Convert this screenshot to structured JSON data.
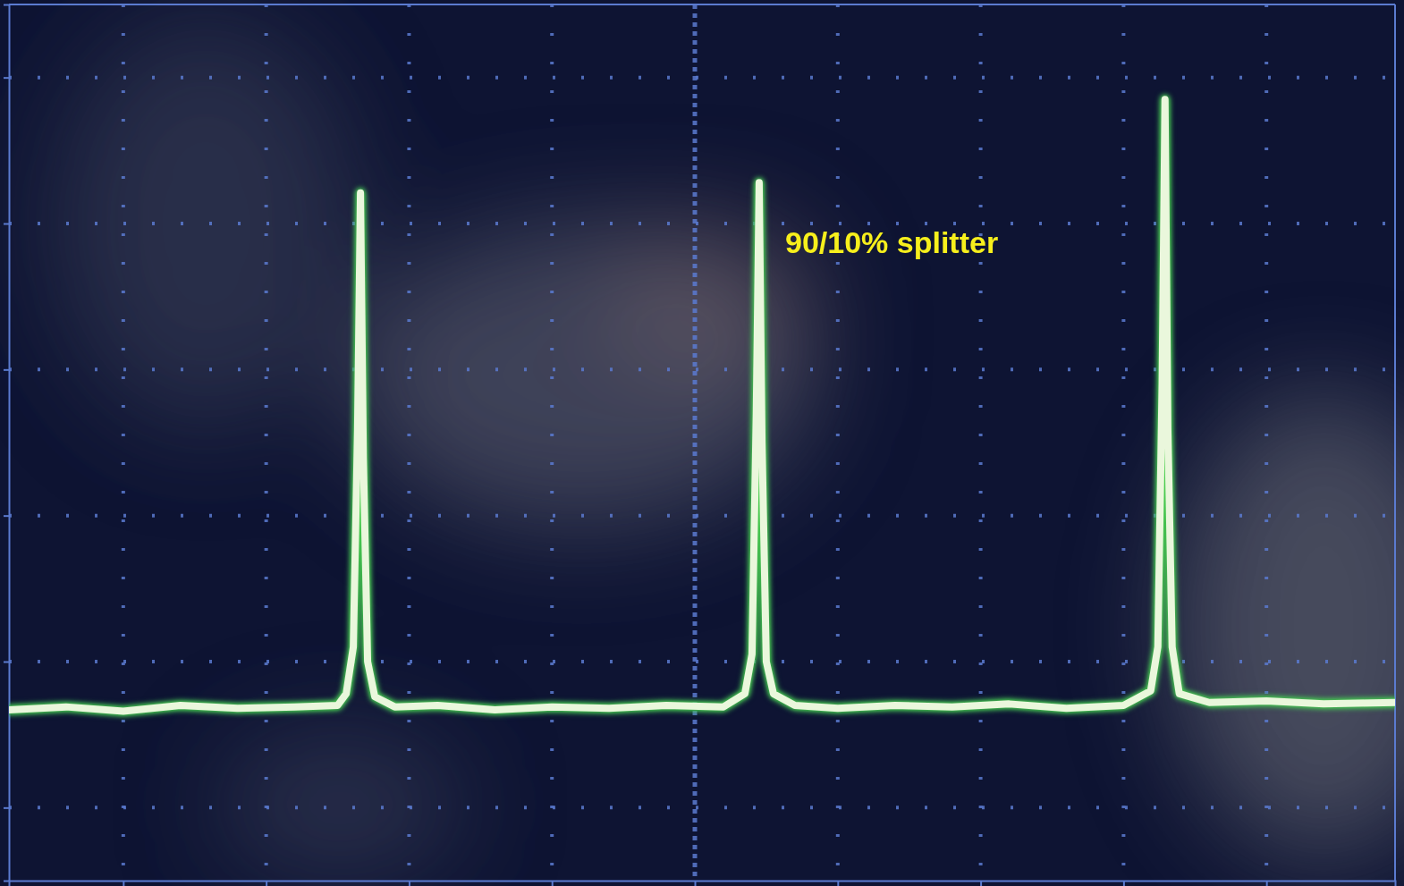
{
  "chart_data": {
    "type": "line",
    "annotation": "90/10% splitter",
    "x": [
      -4.8,
      -4.4,
      -4.0,
      -3.6,
      -3.2,
      -2.8,
      -2.5,
      -2.44,
      -2.39,
      -2.36,
      -2.34,
      -2.32,
      -2.29,
      -2.24,
      -2.1,
      -1.8,
      -1.4,
      -1.0,
      -0.6,
      -0.2,
      0.2,
      0.35,
      0.4,
      0.43,
      0.45,
      0.47,
      0.5,
      0.55,
      0.7,
      1.0,
      1.4,
      1.8,
      2.2,
      2.6,
      3.0,
      3.19,
      3.24,
      3.27,
      3.29,
      3.31,
      3.34,
      3.39,
      3.6,
      4.0,
      4.4,
      4.9
    ],
    "series": [
      {
        "color": "#eaf7dc",
        "values": [
          -1.33,
          -1.31,
          -1.34,
          -1.3,
          -1.32,
          -1.31,
          -1.3,
          -1.22,
          -0.9,
          0.6,
          2.21,
          0.4,
          -1.0,
          -1.24,
          -1.31,
          -1.3,
          -1.33,
          -1.31,
          -1.32,
          -1.3,
          -1.31,
          -1.22,
          -0.95,
          0.7,
          2.28,
          0.5,
          -1.0,
          -1.22,
          -1.3,
          -1.32,
          -1.3,
          -1.31,
          -1.29,
          -1.32,
          -1.3,
          -1.2,
          -0.9,
          0.9,
          2.85,
          0.6,
          -0.9,
          -1.22,
          -1.28,
          -1.27,
          -1.29,
          -1.28
        ]
      }
    ],
    "xlim": [
      -4.8,
      4.9
    ],
    "xticks": [
      -4,
      -3,
      -2,
      -1,
      0,
      1,
      2,
      3,
      4
    ],
    "ylim": [
      -2.5,
      3.5
    ],
    "yticks": [
      -2,
      -1,
      0,
      1,
      2,
      3
    ],
    "grid": true,
    "tick_labels": false
  }
}
